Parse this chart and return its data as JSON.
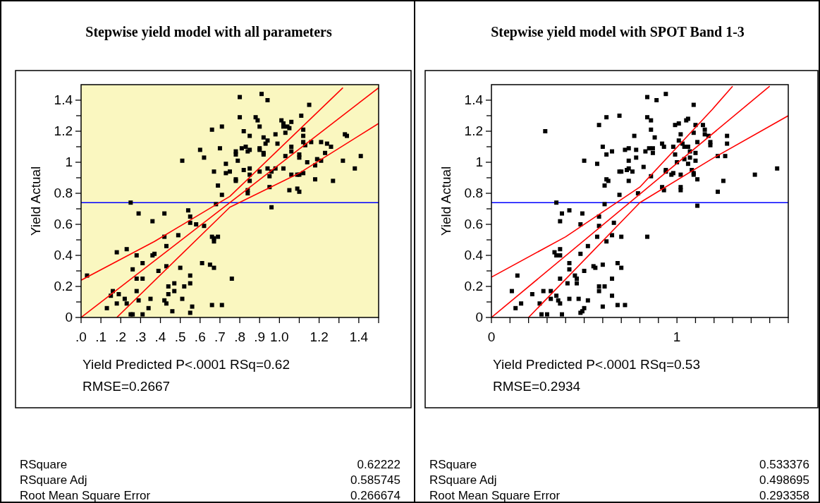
{
  "chart_data": [
    {
      "type": "scatter",
      "title": "Stepwise yield model with all parameters",
      "xlabel": "Yield Predicted P<.0001 RSq=0.62\nRMSE=0.2667",
      "ylabel": "Yield Actual",
      "xlim": [
        0,
        1.5
      ],
      "ylim": [
        0,
        1.5
      ],
      "xticks": [
        {
          "value": 0,
          "label": ".0"
        },
        {
          "value": 0.1,
          "label": ".1"
        },
        {
          "value": 0.2,
          "label": ".2"
        },
        {
          "value": 0.3,
          "label": ".3"
        },
        {
          "value": 0.4,
          "label": ".4"
        },
        {
          "value": 0.5,
          "label": ".5"
        },
        {
          "value": 0.6,
          "label": ".6"
        },
        {
          "value": 0.7,
          "label": ".7"
        },
        {
          "value": 0.8,
          "label": ".8"
        },
        {
          "value": 0.9,
          "label": ".9"
        },
        {
          "value": 1.0,
          "label": "1.0"
        },
        {
          "value": 1.1,
          "label": null
        },
        {
          "value": 1.2,
          "label": "1.2"
        },
        {
          "value": 1.3,
          "label": null
        },
        {
          "value": 1.4,
          "label": "1.4"
        },
        {
          "value": 1.5,
          "label": null
        }
      ],
      "yticks": [
        0,
        {
          "value": 0.1,
          "label": null
        },
        0.2,
        {
          "value": 0.3,
          "label": null
        },
        0.4,
        {
          "value": 0.5,
          "label": null
        },
        0.6,
        {
          "value": 0.7,
          "label": null
        },
        0.8,
        {
          "value": 0.9,
          "label": null
        },
        1,
        {
          "value": 1.1,
          "label": null
        },
        1.2,
        {
          "value": 1.3,
          "label": null
        },
        1.4
      ],
      "ref_lines": [
        {
          "axis": "y",
          "value": 0.74,
          "color": "#0000ff"
        }
      ],
      "series": [
        {
          "marker": "square",
          "color": "#000000",
          "x": [
            0.8,
            0.91,
            0.94,
            1.15,
            0.8,
            0.88,
            0.89,
            0.9,
            0.71,
            0.66,
            1.11,
            0.82,
            0.85,
            0.92,
            0.94,
            0.93,
            0.98,
            1.01,
            1.02,
            1.02,
            1.03,
            1.04,
            1.05,
            1.06,
            1.12,
            1.12,
            1.12,
            1.13,
            1.16,
            1.21,
            1.24,
            1.26,
            1.33,
            1.34,
            0.99,
            1.06,
            1.06,
            1.1,
            1.1,
            1.03,
            1.23,
            1.19,
            1.21,
            1.18,
            1.32,
            1.41,
            1.38,
            1.14,
            1.12,
            1.1,
            1.06,
            1.09,
            1.05,
            1.09,
            1.1,
            1.18,
            1.27,
            1.02,
            0.98,
            0.94,
            0.95,
            0.95,
            0.96,
            0.9,
            0.96,
            0.92,
            0.92,
            0.9,
            0.9,
            0.85,
            0.84,
            0.83,
            0.81,
            0.78,
            0.78,
            0.79,
            0.82,
            0.85,
            0.85,
            0.85,
            0.78,
            0.78,
            0.84,
            0.84,
            0.73,
            0.73,
            0.75,
            0.67,
            0.69,
            0.71,
            0.7,
            0.6,
            0.62,
            0.51,
            0.68,
            0.25,
            0.29,
            0.36,
            0.42,
            0.54,
            0.55,
            0.55,
            0.58,
            0.62,
            0.42,
            0.49,
            0.43,
            0.66,
            0.67,
            0.69,
            0.67,
            0.23,
            0.18,
            0.28,
            0.36,
            0.37,
            0.31,
            0.39,
            0.26,
            0.43,
            0.5,
            0.61,
            0.65,
            0.67,
            0.76,
            0.55,
            0.28,
            0.31,
            0.44,
            0.47,
            0.52,
            0.55,
            0.03,
            0.16,
            0.15,
            0.19,
            0.18,
            0.22,
            0.23,
            0.13,
            0.28,
            0.29,
            0.35,
            0.34,
            0.25,
            0.26,
            0.31,
            0.42,
            0.43,
            0.44,
            0.47,
            0.46,
            0.51,
            0.55,
            0.56,
            0.66,
            0.71
          ],
          "values": [
            1.42,
            1.44,
            1.4,
            1.37,
            1.29,
            1.29,
            1.27,
            1.23,
            1.23,
            1.21,
            1.3,
            1.2,
            1.17,
            1.16,
            1.14,
            1.12,
            1.18,
            1.27,
            1.25,
            1.23,
            1.19,
            1.23,
            1.22,
            1.26,
            1.21,
            1.17,
            1.13,
            1.11,
            1.13,
            1.13,
            1.12,
            1.1,
            1.18,
            1.17,
            1.12,
            1.1,
            1.07,
            1.05,
            1.03,
            1.04,
            1.06,
            1.02,
            1.01,
            0.98,
            1.01,
            1.04,
            0.96,
            1.0,
            0.93,
            0.92,
            0.92,
            0.92,
            0.82,
            0.83,
            0.81,
            0.89,
            0.88,
            0.96,
            0.96,
            0.96,
            0.84,
            0.91,
            0.94,
            0.94,
            0.71,
            1.05,
            1.06,
            1.08,
            1.09,
            1.08,
            1.07,
            1.1,
            1.09,
            1.07,
            1.05,
            1.01,
            0.95,
            0.96,
            0.92,
            0.88,
            0.89,
            0.88,
            0.82,
            0.8,
            0.99,
            0.93,
            0.94,
            0.94,
            0.85,
            0.79,
            1.09,
            1.08,
            1.03,
            1.01,
            0.73,
            0.74,
            0.67,
            0.62,
            0.67,
            0.69,
            0.65,
            0.61,
            0.6,
            0.59,
            0.52,
            0.53,
            0.46,
            0.52,
            0.51,
            0.52,
            0.49,
            0.44,
            0.42,
            0.4,
            0.4,
            0.41,
            0.35,
            0.3,
            0.31,
            0.33,
            0.32,
            0.35,
            0.34,
            0.32,
            0.25,
            0.27,
            0.25,
            0.25,
            0.2,
            0.22,
            0.2,
            0.22,
            0.27,
            0.17,
            0.14,
            0.15,
            0.09,
            0.12,
            0.09,
            0.06,
            0.17,
            0.11,
            0.12,
            0.06,
            0.02,
            0.02,
            0.02,
            0.11,
            0.09,
            0.15,
            0.17,
            0.04,
            0.12,
            0.03,
            0.07,
            0.08,
            0.08
          ]
        },
        {
          "type": "line",
          "color": "#ff0000",
          "x": [
            0,
            1.5
          ],
          "values": [
            0,
            1.48
          ]
        },
        {
          "type": "line",
          "color": "#ff0000",
          "x": [
            0,
            0.37,
            0.75,
            1.32
          ],
          "values": [
            0.24,
            0.49,
            0.78,
            1.48
          ]
        },
        {
          "type": "line",
          "color": "#ff0000",
          "x": [
            0.18,
            0.75,
            1.1,
            1.5
          ],
          "values": [
            0,
            0.71,
            0.93,
            1.25
          ]
        }
      ],
      "annotations": [
        "RSquare",
        "0.62222",
        "RSquare Adj",
        "0.585745",
        "Root Mean Square Error",
        "0.266674"
      ]
    },
    {
      "type": "scatter",
      "title": "Stepwise yield model with SPOT Band 1-3",
      "xlabel": "Yield Predicted P<.0001 RSq=0.53\nRMSE=0.2934",
      "ylabel": "Yield Actual",
      "xlim": [
        0,
        1.6
      ],
      "ylim": [
        0,
        1.5
      ],
      "xticks": [
        0,
        {
          "value": 0.1,
          "label": null
        },
        {
          "value": 0.2,
          "label": null
        },
        {
          "value": 0.3,
          "label": null
        },
        {
          "value": 0.4,
          "label": null
        },
        {
          "value": 0.5,
          "label": null
        },
        {
          "value": 0.6,
          "label": null
        },
        {
          "value": 0.7,
          "label": null
        },
        {
          "value": 0.8,
          "label": null
        },
        {
          "value": 0.9,
          "label": null
        },
        1,
        {
          "value": 1.1,
          "label": null
        },
        {
          "value": 1.2,
          "label": null
        },
        {
          "value": 1.3,
          "label": null
        },
        {
          "value": 1.4,
          "label": null
        },
        {
          "value": 1.5,
          "label": null
        },
        {
          "value": 1.6,
          "label": null
        }
      ],
      "yticks": [
        0,
        {
          "value": 0.1,
          "label": null
        },
        0.2,
        {
          "value": 0.3,
          "label": null
        },
        0.4,
        {
          "value": 0.5,
          "label": null
        },
        0.6,
        {
          "value": 0.7,
          "label": null
        },
        0.8,
        {
          "value": 0.9,
          "label": null
        },
        1,
        {
          "value": 1.1,
          "label": null
        },
        1.2,
        {
          "value": 1.3,
          "label": null
        },
        1.4
      ],
      "ref_lines": [
        {
          "axis": "y",
          "value": 0.74,
          "color": "#0000ff"
        }
      ],
      "series": [
        {
          "marker": "square",
          "color": "#000000",
          "x": [
            0.84,
            0.94,
            0.89,
            1.09,
            0.69,
            0.62,
            0.58,
            0.84,
            0.86,
            0.86,
            0.29,
            0.77,
            0.88,
            0.99,
            1.01,
            1.05,
            1.06,
            1.1,
            1.14,
            1.09,
            1.02,
            1.15,
            1.15,
            1.17,
            1.27,
            1.27,
            1.18,
            1.18,
            1.11,
            0.92,
            0.93,
            0.98,
            1.01,
            1.03,
            1.04,
            1.06,
            1.07,
            1.1,
            1.07,
            1.04,
            1.1,
            0.99,
            1.0,
            1.06,
            1.08,
            1.09,
            1.09,
            1.11,
            1.02,
            0.97,
            0.98,
            0.94,
            0.94,
            1.22,
            1.26,
            1.25,
            1.22,
            1.42,
            1.54,
            1.02,
            1.02,
            0.93,
            0.92,
            0.82,
            0.86,
            0.79,
            0.84,
            1.11,
            0.6,
            0.65,
            0.62,
            0.72,
            0.74,
            0.78,
            0.78,
            0.83,
            0.85,
            0.87,
            0.87,
            0.74,
            0.5,
            0.57,
            0.69,
            0.7,
            0.73,
            0.74,
            0.76,
            0.62,
            0.63,
            0.74,
            0.61,
            0.69,
            0.61,
            0.35,
            0.38,
            0.42,
            0.49,
            0.37,
            0.48,
            0.58,
            0.58,
            0.66,
            0.57,
            0.65,
            0.7,
            0.62,
            0.52,
            0.34,
            0.37,
            0.35,
            0.37,
            0.48,
            0.42,
            0.42,
            0.45,
            0.46,
            0.46,
            0.55,
            0.56,
            0.6,
            0.68,
            0.7,
            0.5,
            0.65,
            0.37,
            0.41,
            0.58,
            0.61,
            0.58,
            0.65,
            0.14,
            0.11,
            0.13,
            0.16,
            0.22,
            0.28,
            0.26,
            0.27,
            0.3,
            0.32,
            0.32,
            0.35,
            0.36,
            0.37,
            0.38,
            0.42,
            0.47,
            0.52,
            0.48,
            0.49,
            0.5,
            0.6,
            0.68,
            0.72
          ],
          "values": [
            1.42,
            1.44,
            1.4,
            1.37,
            1.3,
            1.29,
            1.24,
            1.29,
            1.27,
            1.21,
            1.2,
            1.17,
            1.16,
            1.24,
            1.25,
            1.27,
            1.28,
            1.24,
            1.24,
            1.19,
            1.18,
            1.21,
            1.18,
            1.17,
            1.17,
            1.12,
            1.13,
            1.11,
            1.13,
            1.12,
            1.1,
            1.1,
            1.14,
            1.12,
            1.1,
            1.1,
            1.07,
            1.06,
            1.03,
            1.02,
            1.01,
            1.05,
            1.0,
            0.99,
            0.95,
            0.93,
            0.92,
            0.89,
            0.92,
            0.92,
            0.93,
            0.95,
            0.94,
            1.04,
            1.04,
            0.88,
            0.81,
            0.92,
            0.96,
            0.84,
            0.82,
            0.82,
            0.84,
            0.97,
            0.91,
            0.8,
            0.52,
            0.72,
            1.1,
            1.07,
            1.05,
            1.08,
            1.09,
            1.08,
            1.03,
            1.07,
            1.09,
            1.09,
            1.06,
            1.01,
            1.01,
            0.99,
            0.94,
            0.94,
            0.95,
            0.96,
            0.94,
            0.89,
            0.88,
            0.88,
            0.85,
            0.79,
            0.73,
            0.74,
            0.67,
            0.69,
            0.67,
            0.62,
            0.6,
            0.65,
            0.59,
            0.61,
            0.52,
            0.53,
            0.52,
            0.49,
            0.46,
            0.42,
            0.44,
            0.4,
            0.4,
            0.41,
            0.35,
            0.31,
            0.27,
            0.25,
            0.22,
            0.33,
            0.32,
            0.34,
            0.35,
            0.32,
            0.3,
            0.25,
            0.25,
            0.22,
            0.2,
            0.2,
            0.17,
            0.14,
            0.27,
            0.17,
            0.06,
            0.09,
            0.15,
            0.17,
            0.09,
            0.02,
            0.02,
            0.17,
            0.12,
            0.14,
            0.11,
            0.09,
            0.02,
            0.12,
            0.12,
            0.11,
            0.03,
            0.04,
            0.06,
            0.07,
            0.08,
            0.08
          ]
        },
        {
          "type": "line",
          "color": "#ff0000",
          "x": [
            0,
            1.5
          ],
          "values": [
            0,
            1.49
          ]
        },
        {
          "type": "line",
          "color": "#ff0000",
          "x": [
            0,
            0.4,
            0.8,
            1.19,
            1.3
          ],
          "values": [
            0.26,
            0.52,
            0.84,
            1.34,
            1.49
          ]
        },
        {
          "type": "line",
          "color": "#ff0000",
          "x": [
            0.2,
            0.8,
            1.2,
            1.6
          ],
          "values": [
            0,
            0.74,
            1.03,
            1.3
          ]
        }
      ],
      "annotations": [
        "RSquare",
        "0.533376",
        "RSquare Adj",
        "0.498695",
        "Root Mean Square Error",
        "0.293358"
      ]
    }
  ]
}
